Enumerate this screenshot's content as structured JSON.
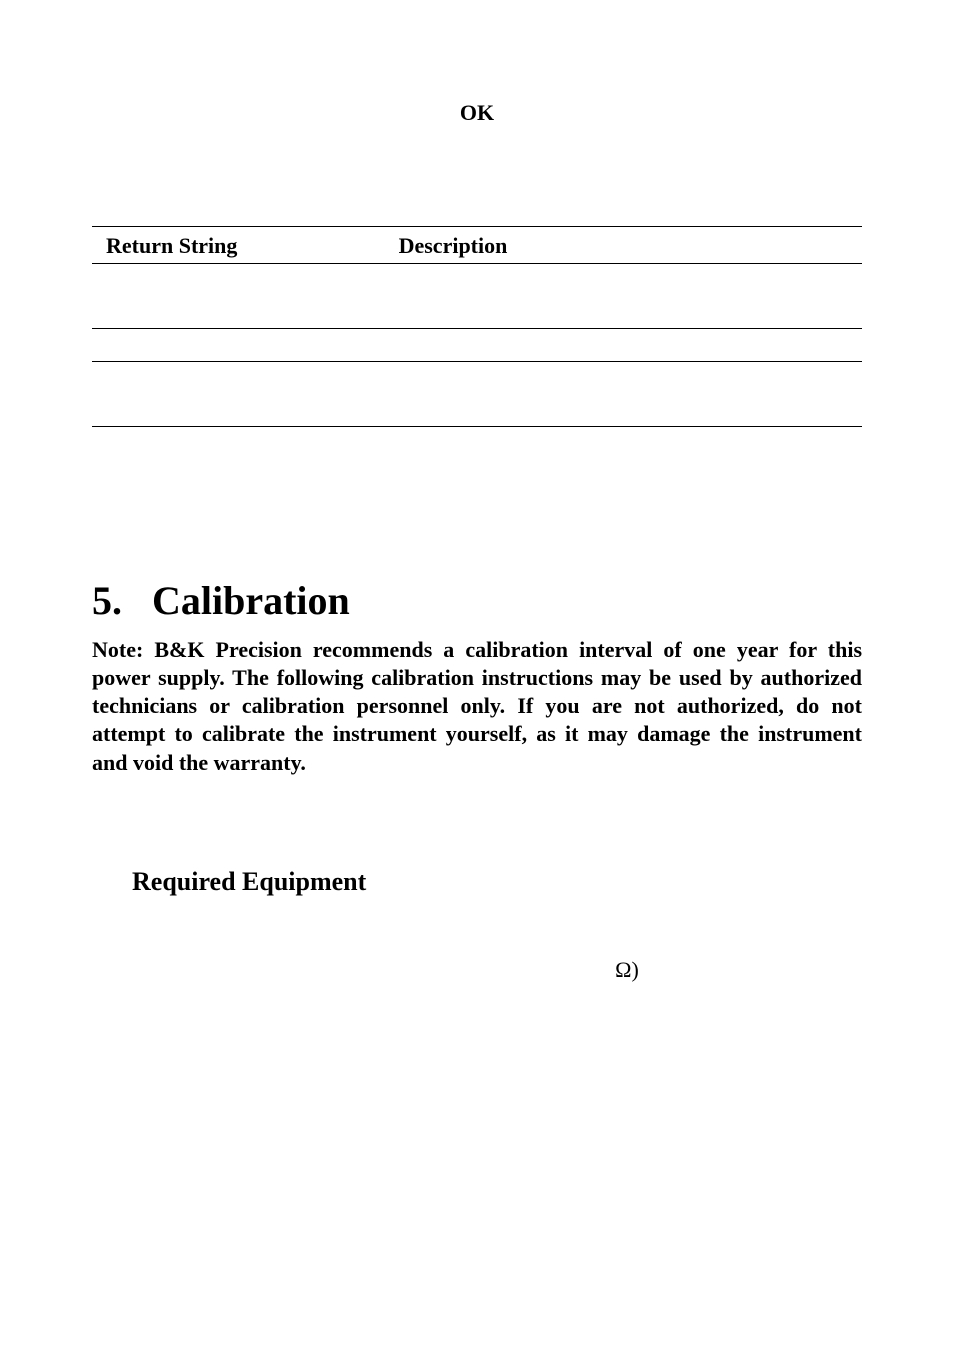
{
  "ok_label": "OK",
  "table": {
    "headers": [
      "Return String",
      "Description"
    ]
  },
  "section": {
    "number": "5.",
    "title": "Calibration"
  },
  "note_text": "Note:   B&K Precision recommends a calibration interval of one year for this power supply.   The following calibration instructions may be used by authorized technicians or calibration personnel only.   If you are not authorized, do not attempt to calibrate the instrument yourself, as it may damage the instrument and void the   warranty.",
  "subsection": "Required Equipment",
  "omega_text": "Ω)"
}
